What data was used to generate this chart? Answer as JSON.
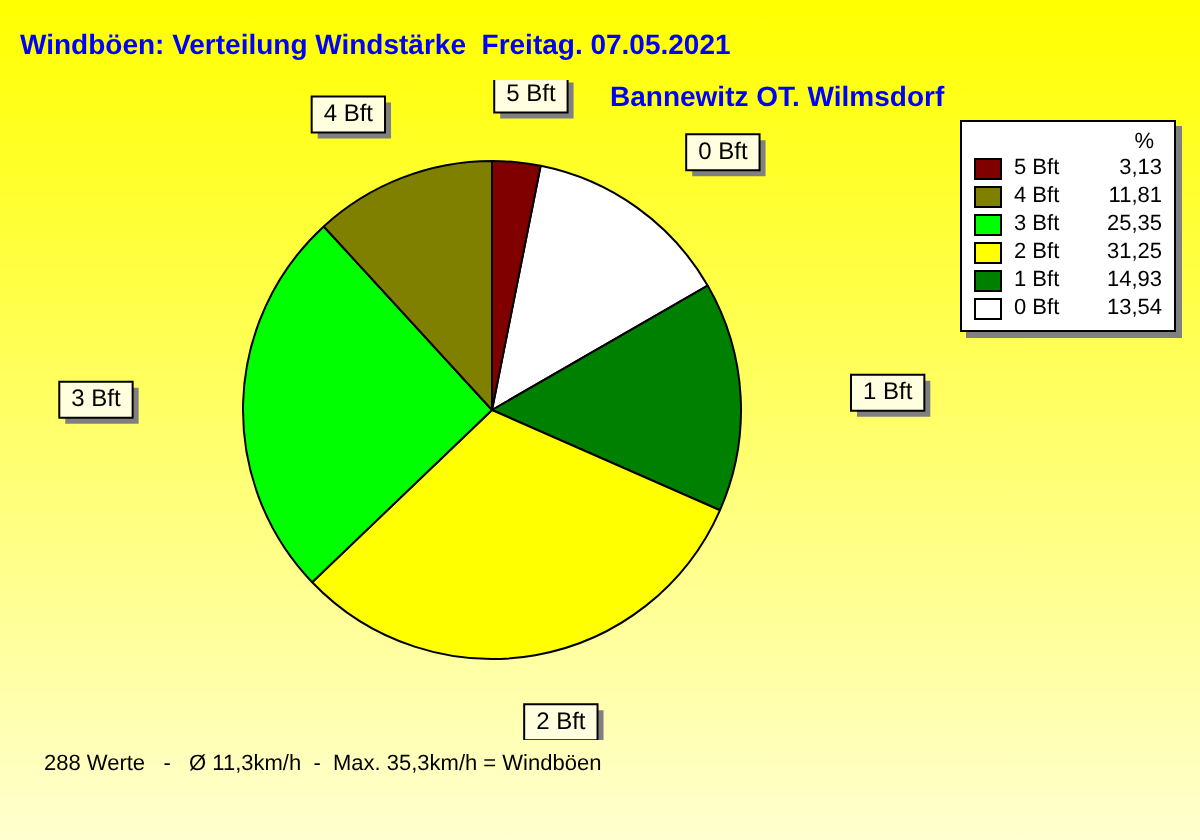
{
  "chart_data": {
    "type": "pie",
    "title": "Windböen: Verteilung Windstärke  Freitag. 07.05.2021",
    "subtitle": "Bannewitz OT. Wilmsdorf",
    "categories": [
      "5 Bft",
      "4 Bft",
      "3 Bft",
      "2 Bft",
      "1 Bft",
      "0 Bft"
    ],
    "values": [
      3.13,
      11.81,
      25.35,
      31.25,
      14.93,
      13.54
    ],
    "value_labels": [
      "3,13",
      "11,81",
      "25,35",
      "31,25",
      "14,93",
      "13,54"
    ],
    "colors": [
      "#800000",
      "#808000",
      "#00ff00",
      "#ffff00",
      "#008000",
      "#ffffff"
    ],
    "legend_title": "%",
    "legend": "top right",
    "annotations": [
      "288 Werte   -   Ø 11,3km/h  -  Max. 35,3km/h = Windböen"
    ]
  }
}
